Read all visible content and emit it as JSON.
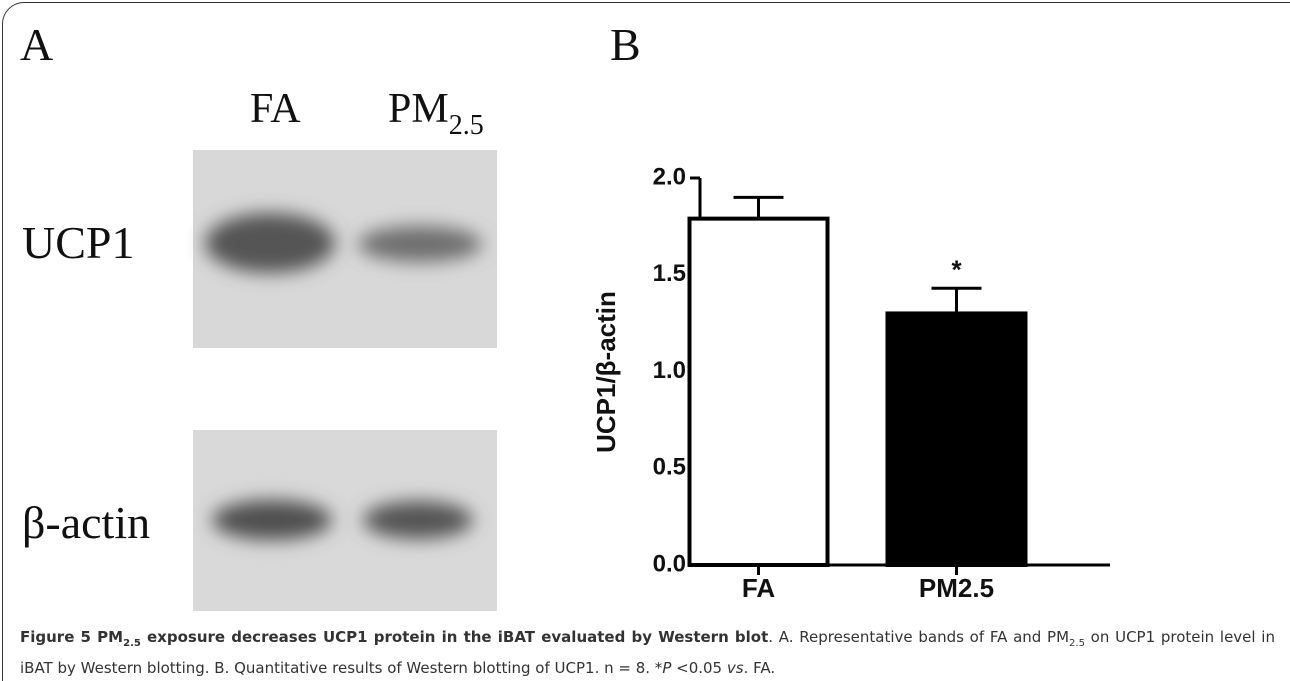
{
  "panel_a": {
    "label": "A",
    "columns": [
      {
        "text": "FA"
      },
      {
        "text": "PM",
        "sub": "2.5"
      }
    ],
    "rows": [
      "UCP1",
      "β-actin"
    ]
  },
  "chart_data": {
    "type": "bar",
    "panel_label": "B",
    "ylabel": "UCP1/β-actin",
    "categories": [
      "FA",
      "PM2.5"
    ],
    "values": [
      1.79,
      1.3
    ],
    "errors": [
      0.11,
      0.13
    ],
    "colors": [
      "#ffffff",
      "#000000"
    ],
    "significance_labels": [
      null,
      "*"
    ],
    "ylim": [
      0,
      2
    ],
    "yticks": [
      {
        "value": 0,
        "label": "0.0"
      },
      {
        "value": 0.5,
        "label": "0.5"
      },
      {
        "value": 1,
        "label": "1.0"
      },
      {
        "value": 1.5,
        "label": "1.5"
      },
      {
        "value": 2,
        "label": "2.0"
      }
    ]
  },
  "caption": {
    "runs": [
      "Figure 5 PM",
      "2.5",
      " exposure decreases UCP1 protein in the iBAT evaluated by Western blot",
      ". A. Representative bands of FA and PM",
      "2.5",
      " on UCP1 protein level in iBAT by Western blotting. B. Quantitative results of Western blotting of UCP1. n = 8. *",
      "P",
      " <0.05 ",
      "vs",
      ". FA."
    ]
  }
}
